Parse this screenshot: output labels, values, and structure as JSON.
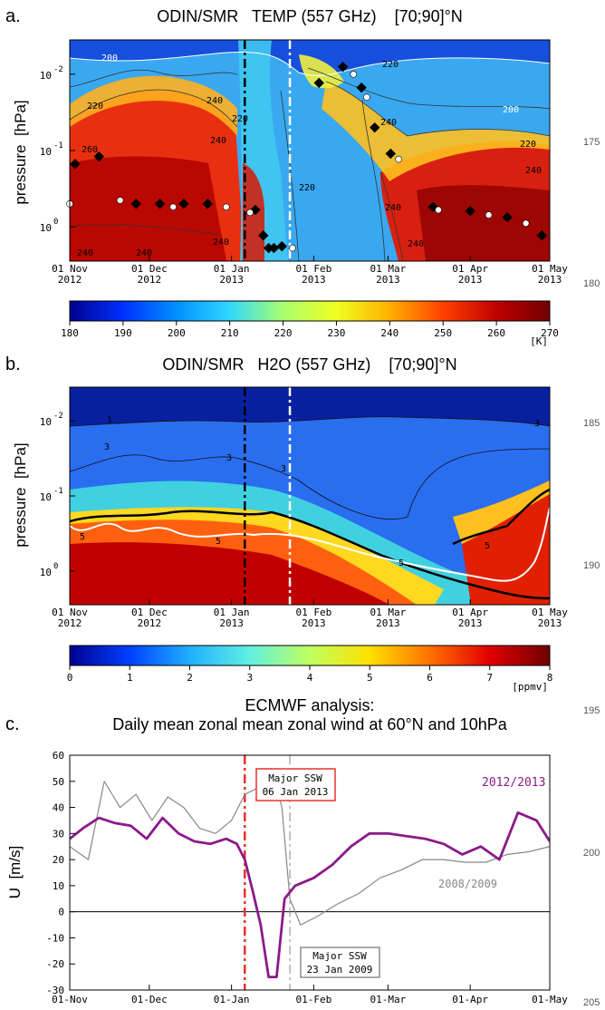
{
  "side_line_numbers": [
    "175",
    "180",
    "185",
    "190",
    "195",
    "200",
    "205"
  ],
  "chart_data": [
    {
      "panel_label": "a.",
      "title": "ODIN/SMR   TEMP (557 GHz)    [70;90]°N",
      "type": "heatmap",
      "ylabel": "pressure  [hPa]",
      "y_scale": "log",
      "y_ticks": [
        "10-2",
        "10-1",
        "100"
      ],
      "x_ticks": [
        {
          "line1": "01 Nov",
          "line2": "2012"
        },
        {
          "line1": "01 Dec",
          "line2": "2012"
        },
        {
          "line1": "01 Jan",
          "line2": "2013"
        },
        {
          "line1": "01 Feb",
          "line2": "2013"
        },
        {
          "line1": "01 Mar",
          "line2": "2013"
        },
        {
          "line1": "01 Apr",
          "line2": "2013"
        },
        {
          "line1": "01 May",
          "line2": "2013"
        }
      ],
      "x_range": [
        "2012-11-01",
        "2013-05-01"
      ],
      "vertical_lines": [
        {
          "date": "2013-01-06",
          "color": "#000000",
          "style": "dash-dot"
        },
        {
          "date": "2013-01-23",
          "color": "#ffffff",
          "style": "dash-dot"
        }
      ],
      "contour_labels": [
        "200",
        "220",
        "240",
        "200",
        "220",
        "240",
        "220",
        "240",
        "220",
        "240",
        "260",
        "240",
        "240",
        "240",
        "220",
        "240",
        "240"
      ],
      "colorbar": {
        "ticks": [
          "180",
          "190",
          "200",
          "210",
          "220",
          "230",
          "240",
          "250",
          "260",
          "270"
        ],
        "unit": "[K]",
        "colors": [
          "#000090",
          "#0030ff",
          "#0090ff",
          "#30d8ff",
          "#a8ff70",
          "#f0ff20",
          "#ffb000",
          "#ff4000",
          "#c00000",
          "#700000"
        ]
      },
      "stratopause_markers": [
        {
          "date": "2012-11-03",
          "p": 0.15,
          "filled": true
        },
        {
          "date": "2012-11-12",
          "p": 0.12,
          "filled": true
        },
        {
          "date": "2012-11-26",
          "p": 0.5,
          "filled": true
        },
        {
          "date": "2012-12-05",
          "p": 0.5,
          "filled": true
        },
        {
          "date": "2012-12-14",
          "p": 0.5,
          "filled": true
        },
        {
          "date": "2012-12-23",
          "p": 0.5,
          "filled": true
        },
        {
          "date": "2013-01-10",
          "p": 0.6,
          "filled": true
        },
        {
          "date": "2013-01-13",
          "p": 1.3,
          "filled": true
        },
        {
          "date": "2013-01-15",
          "p": 1.9,
          "filled": true
        },
        {
          "date": "2013-01-17",
          "p": 1.9,
          "filled": true
        },
        {
          "date": "2013-01-20",
          "p": 1.8,
          "filled": true
        },
        {
          "date": "2013-02-03",
          "p": 0.013,
          "filled": true
        },
        {
          "date": "2013-02-12",
          "p": 0.008,
          "filled": true
        },
        {
          "date": "2013-02-19",
          "p": 0.015,
          "filled": true
        },
        {
          "date": "2013-02-24",
          "p": 0.05,
          "filled": true
        },
        {
          "date": "2013-03-02",
          "p": 0.11,
          "filled": true
        },
        {
          "date": "2013-03-18",
          "p": 0.55,
          "filled": true
        },
        {
          "date": "2013-04-01",
          "p": 0.62,
          "filled": true
        },
        {
          "date": "2013-04-15",
          "p": 0.75,
          "filled": true
        },
        {
          "date": "2013-04-28",
          "p": 1.3,
          "filled": true
        },
        {
          "date": "2012-11-01",
          "p": 0.5,
          "filled": false
        },
        {
          "date": "2012-11-20",
          "p": 0.45,
          "filled": false
        },
        {
          "date": "2012-12-10",
          "p": 0.55,
          "filled": false
        },
        {
          "date": "2012-12-30",
          "p": 0.55,
          "filled": false
        },
        {
          "date": "2013-01-08",
          "p": 0.65,
          "filled": false
        },
        {
          "date": "2013-01-24",
          "p": 1.9,
          "filled": false
        },
        {
          "date": "2013-02-16",
          "p": 0.01,
          "filled": false
        },
        {
          "date": "2013-02-21",
          "p": 0.02,
          "filled": false
        },
        {
          "date": "2013-03-05",
          "p": 0.13,
          "filled": false
        },
        {
          "date": "2013-03-20",
          "p": 0.6,
          "filled": false
        },
        {
          "date": "2013-04-08",
          "p": 0.7,
          "filled": false
        },
        {
          "date": "2013-04-22",
          "p": 0.9,
          "filled": false
        }
      ]
    },
    {
      "panel_label": "b.",
      "title": "ODIN/SMR   H2O (557 GHz)    [70;90]°N",
      "type": "heatmap",
      "ylabel": "pressure  [hPa]",
      "y_scale": "log",
      "y_ticks": [
        "10-2",
        "10-1",
        "100"
      ],
      "x_ticks": [
        {
          "line1": "01 Nov",
          "line2": "2012"
        },
        {
          "line1": "01 Dec",
          "line2": "2012"
        },
        {
          "line1": "01 Jan",
          "line2": "2013"
        },
        {
          "line1": "01 Feb",
          "line2": "2013"
        },
        {
          "line1": "01 Mar",
          "line2": "2013"
        },
        {
          "line1": "01 Apr",
          "line2": "2013"
        },
        {
          "line1": "01 May",
          "line2": "2013"
        }
      ],
      "x_range": [
        "2012-11-01",
        "2013-05-01"
      ],
      "vertical_lines": [
        {
          "date": "2013-01-06",
          "color": "#000000",
          "style": "dash-dot"
        },
        {
          "date": "2013-01-23",
          "color": "#ffffff",
          "style": "dash-dot"
        }
      ],
      "contour_labels": [
        "1",
        "3",
        "3",
        "3",
        "3",
        "5",
        "5",
        "5",
        "5"
      ],
      "colorbar": {
        "ticks": [
          "0",
          "1",
          "2",
          "3",
          "4",
          "5",
          "6",
          "7",
          "8"
        ],
        "unit": "[ppmv]",
        "colors": [
          "#000090",
          "#0040ff",
          "#20b0ff",
          "#60f0e0",
          "#c0ff60",
          "#ffe000",
          "#ff7000",
          "#e00000",
          "#700000"
        ]
      }
    },
    {
      "panel_label": "c.",
      "title": "ECMWF analysis:",
      "subtitle": "Daily mean zonal mean zonal wind at 60°N and 10hPa",
      "type": "line",
      "ylabel": "U  [m/s]",
      "ylim": [
        -30,
        60
      ],
      "y_ticks": [
        "60",
        "50",
        "40",
        "30",
        "20",
        "10",
        "0",
        "-10",
        "-20",
        "-30"
      ],
      "x_ticks": [
        "01-Nov",
        "01-Dec",
        "01-Jan",
        "01-Feb",
        "01-Mar",
        "01-Apr",
        "01-May"
      ],
      "x_range": [
        "2012-11-01",
        "2013-05-01"
      ],
      "series": [
        {
          "name": "2012/2013",
          "color": "#8b1a89",
          "x": [
            "2012-11-01",
            "2012-11-06",
            "2012-11-12",
            "2012-11-18",
            "2012-11-24",
            "2012-11-30",
            "2012-12-06",
            "2012-12-12",
            "2012-12-18",
            "2012-12-24",
            "2012-12-30",
            "2013-01-03",
            "2013-01-06",
            "2013-01-09",
            "2013-01-12",
            "2013-01-15",
            "2013-01-18",
            "2013-01-21",
            "2013-01-25",
            "2013-02-01",
            "2013-02-08",
            "2013-02-15",
            "2013-02-22",
            "2013-03-01",
            "2013-03-08",
            "2013-03-15",
            "2013-03-22",
            "2013-03-29",
            "2013-04-05",
            "2013-04-12",
            "2013-04-19",
            "2013-04-26",
            "2013-05-01"
          ],
          "y": [
            28,
            32,
            36,
            34,
            33,
            28,
            36,
            30,
            27,
            26,
            28,
            26,
            20,
            8,
            -5,
            -25,
            -25,
            5,
            10,
            13,
            18,
            25,
            30,
            30,
            29,
            28,
            26,
            22,
            25,
            20,
            38,
            35,
            27
          ]
        },
        {
          "name": "2008/2009",
          "color": "#888888",
          "x": [
            "2012-11-01",
            "2012-11-08",
            "2012-11-14",
            "2012-11-20",
            "2012-11-26",
            "2012-12-02",
            "2012-12-08",
            "2012-12-14",
            "2012-12-20",
            "2012-12-26",
            "2013-01-01",
            "2013-01-06",
            "2013-01-12",
            "2013-01-16",
            "2013-01-20",
            "2013-01-23",
            "2013-01-27",
            "2013-02-02",
            "2013-02-10",
            "2013-02-18",
            "2013-02-26",
            "2013-03-06",
            "2013-03-14",
            "2013-03-22",
            "2013-03-30",
            "2013-04-07",
            "2013-04-15",
            "2013-04-23",
            "2013-05-01"
          ],
          "y": [
            25,
            20,
            50,
            40,
            45,
            35,
            44,
            40,
            32,
            30,
            35,
            45,
            48,
            55,
            40,
            5,
            -5,
            -2,
            3,
            7,
            13,
            16,
            20,
            20,
            19,
            19,
            22,
            23,
            25
          ]
        }
      ],
      "legend": {
        "labels": [
          "2012/2013",
          "2008/2009"
        ]
      },
      "vertical_lines": [
        {
          "date": "2013-01-06",
          "color": "#e8322a",
          "style": "dash-dot"
        },
        {
          "date": "2013-01-23",
          "color": "#888888",
          "style": "dash-dot"
        }
      ],
      "annotations": [
        {
          "line1": "Major SSW",
          "line2": "06 Jan 2013",
          "border": "#e8322a"
        },
        {
          "line1": "Major SSW",
          "line2": "23 Jan 2009",
          "border": "#555555"
        }
      ]
    }
  ]
}
